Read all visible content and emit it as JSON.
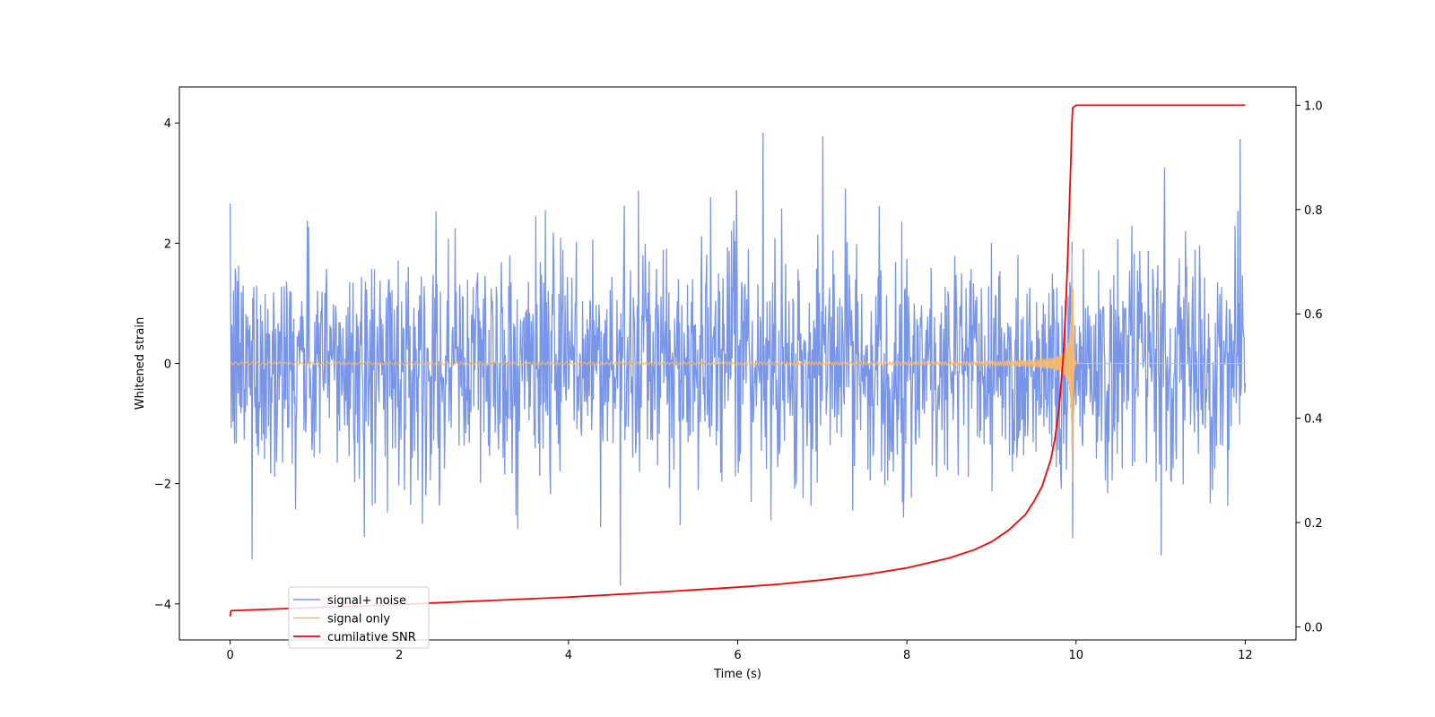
{
  "chart_data": {
    "type": "line",
    "title": "",
    "xlabel": "Time (s)",
    "ylabel": "Whitened strain",
    "y2label": "",
    "xlim": [
      -0.6,
      12.6
    ],
    "ylim": [
      -4.6,
      4.6
    ],
    "y2lim": [
      -0.025,
      1.035
    ],
    "xticks": [
      0,
      2,
      4,
      6,
      8,
      10,
      12
    ],
    "yticks": [
      -4,
      -2,
      0,
      2,
      4
    ],
    "y2ticks": [
      0.0,
      0.2,
      0.4,
      0.6,
      0.8,
      1.0
    ],
    "xtick_labels": [
      "0",
      "2",
      "4",
      "6",
      "8",
      "10",
      "12"
    ],
    "ytick_labels": [
      "−4",
      "−2",
      "0",
      "2",
      "4"
    ],
    "y2tick_labels": [
      "0.0",
      "0.2",
      "0.4",
      "0.6",
      "0.8",
      "1.0"
    ],
    "grid": false,
    "legend_position": "lower-left",
    "series": [
      {
        "name": "signal+ noise",
        "color": "#7895e8",
        "axis": "left",
        "style": "gaussian-noise",
        "x_range": [
          0,
          12
        ],
        "noise_sigma": 1.0,
        "peak_min": -4.15,
        "peak_max": 4.15
      },
      {
        "name": "signal only",
        "color": "#f5b96b",
        "axis": "left",
        "style": "chirp",
        "x_range": [
          0,
          12
        ],
        "merger_time": 9.96,
        "amplitude_at_merger": 2.0
      },
      {
        "name": "cumilative SNR",
        "color": "#ff0000",
        "axis": "right",
        "x": [
          0,
          0.01,
          1,
          2,
          3,
          4,
          5,
          6,
          6.5,
          7,
          7.5,
          8,
          8.5,
          8.8,
          9,
          9.2,
          9.4,
          9.5,
          9.6,
          9.7,
          9.75,
          9.8,
          9.85,
          9.88,
          9.9,
          9.92,
          9.94,
          9.95,
          9.96,
          10,
          11,
          12
        ],
        "values": [
          0.02,
          0.031,
          0.037,
          0.043,
          0.05,
          0.057,
          0.066,
          0.076,
          0.082,
          0.09,
          0.1,
          0.113,
          0.132,
          0.148,
          0.163,
          0.185,
          0.215,
          0.24,
          0.27,
          0.32,
          0.36,
          0.42,
          0.52,
          0.62,
          0.7,
          0.8,
          0.9,
          0.96,
          0.995,
          1.0,
          1.0,
          1.0
        ]
      }
    ]
  }
}
